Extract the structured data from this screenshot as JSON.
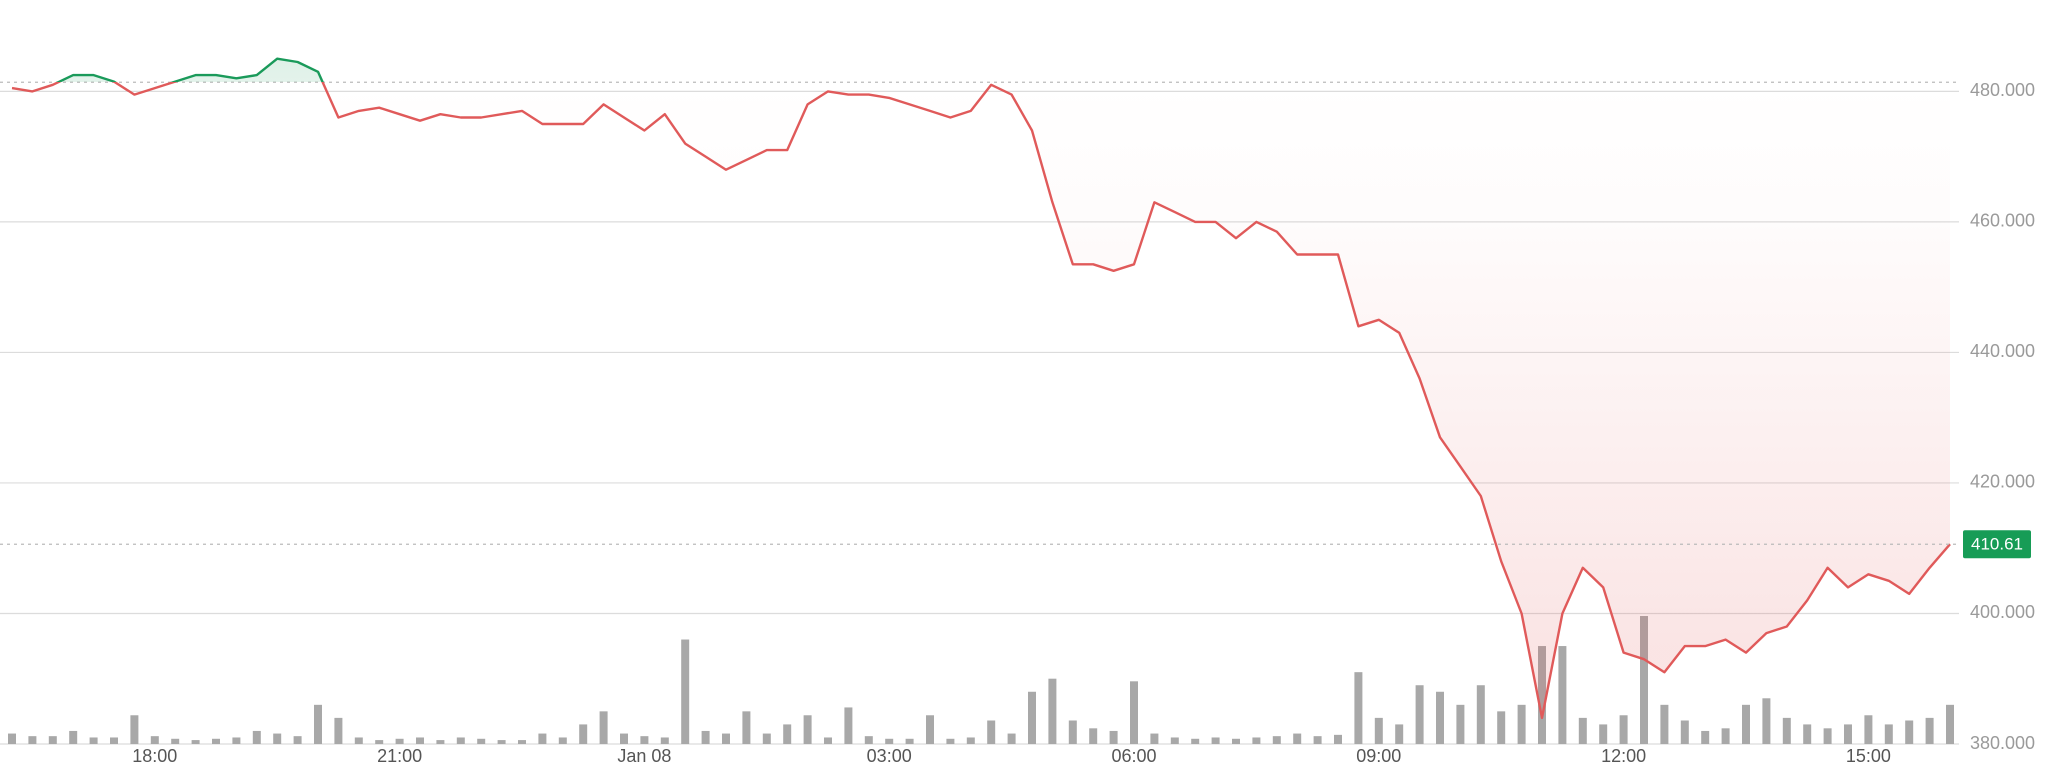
{
  "chart_data": {
    "type": "line",
    "categories": [
      null,
      null,
      null,
      null,
      null,
      null,
      null,
      "18:00",
      null,
      null,
      null,
      null,
      null,
      null,
      null,
      null,
      null,
      null,
      null,
      "21:00",
      null,
      null,
      null,
      null,
      null,
      null,
      null,
      null,
      null,
      null,
      null,
      "Jan 08",
      null,
      null,
      null,
      null,
      null,
      null,
      null,
      null,
      null,
      null,
      null,
      "03:00",
      null,
      null,
      null,
      null,
      null,
      null,
      null,
      null,
      null,
      null,
      null,
      "06:00",
      null,
      null,
      null,
      null,
      null,
      null,
      null,
      null,
      null,
      null,
      null,
      "09:00",
      null,
      null,
      null,
      null,
      null,
      null,
      null,
      null,
      null,
      null,
      null,
      "12:00",
      null,
      null,
      null,
      null,
      null,
      null,
      null,
      null,
      null,
      null,
      null,
      "15:00",
      null,
      null,
      null,
      null
    ],
    "series": [
      {
        "color": "#e05a5a",
        "above_color": "#1a9a5a",
        "values": [
          480.5,
          480,
          481,
          482.5,
          482.5,
          481.5,
          479.5,
          480.5,
          481.5,
          482.5,
          482.5,
          482,
          482.5,
          485,
          484.5,
          483,
          476,
          477,
          477.5,
          476.5,
          475.5,
          476.5,
          476,
          476,
          476.5,
          477,
          475,
          475,
          475,
          478,
          476,
          474,
          476.5,
          472,
          470,
          468,
          469.5,
          471,
          471,
          478,
          480,
          479.5,
          479.5,
          479,
          478,
          477,
          476,
          477,
          481,
          479.5,
          474,
          463,
          453.5,
          453.5,
          452.5,
          453.5,
          463,
          461.5,
          460,
          460,
          457.5,
          460,
          458.5,
          455,
          455,
          455,
          444,
          445,
          443,
          436,
          427,
          422.5,
          418,
          408,
          400,
          384,
          400,
          407,
          404,
          394,
          393,
          391,
          395,
          395,
          396,
          394,
          397,
          398,
          402,
          407,
          404,
          406,
          405,
          403,
          407,
          410.61
        ]
      }
    ],
    "volume": {
      "color": "#a8a8a8",
      "values": [
        8,
        6,
        6,
        10,
        5,
        5,
        22,
        6,
        4,
        3,
        4,
        5,
        10,
        8,
        6,
        30,
        20,
        5,
        3,
        4,
        5,
        3,
        5,
        4,
        3,
        3,
        8,
        5,
        15,
        25,
        8,
        6,
        5,
        80,
        10,
        8,
        25,
        8,
        15,
        22,
        5,
        28,
        6,
        4,
        4,
        22,
        4,
        5,
        18,
        8,
        40,
        50,
        18,
        12,
        10,
        48,
        8,
        5,
        4,
        5,
        4,
        5,
        6,
        8,
        6,
        7,
        55,
        20,
        15,
        45,
        40,
        30,
        45,
        25,
        30,
        75,
        75,
        20,
        15,
        22,
        98,
        30,
        18,
        10,
        12,
        30,
        35,
        20,
        15,
        12,
        15,
        22,
        15,
        18,
        20,
        30
      ]
    },
    "y2lim": [
      0,
      100
    ],
    "reference_line": 481.4,
    "ylim": [
      380,
      494
    ],
    "yticks": [
      {
        "value": 380,
        "label": "380.000"
      },
      {
        "value": 400,
        "label": "400.000"
      },
      {
        "value": 420,
        "label": "420.000"
      },
      {
        "value": 440,
        "label": "440.000"
      },
      {
        "value": 460,
        "label": "460.000"
      },
      {
        "value": 480,
        "label": "480.000"
      }
    ],
    "grid": true,
    "tag_color": "#179c56"
  }
}
